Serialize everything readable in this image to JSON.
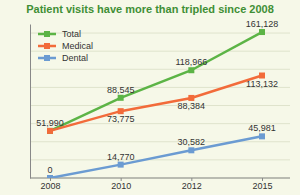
{
  "chart_data": {
    "type": "line",
    "title": "Patient visits have more than tripled since 2008",
    "categories": [
      "2008",
      "2010",
      "2012",
      "2015"
    ],
    "series": [
      {
        "name": "Total",
        "color": "#5cb446",
        "values": [
          51990,
          88545,
          118966,
          161128
        ],
        "value_labels": [
          "51,990",
          "88,545",
          "118,966",
          "161,128"
        ]
      },
      {
        "name": "Medical",
        "color": "#f26b3a",
        "values": [
          51990,
          73775,
          88384,
          113132
        ],
        "value_labels": [
          null,
          "73,775",
          "88,384",
          "113,132"
        ]
      },
      {
        "name": "Dental",
        "color": "#6b9bd2",
        "values": [
          0,
          14770,
          30582,
          45981
        ],
        "value_labels": [
          "0",
          "14,770",
          "30,582",
          "45,981"
        ]
      }
    ],
    "ylim": [
      0,
      170000
    ],
    "yticks": [
      0,
      20000,
      40000,
      60000,
      80000,
      100000,
      120000,
      140000,
      160000
    ],
    "grid": true,
    "tick_labels": "x",
    "legend": "top-left",
    "marker": "square",
    "data_labels": true
  }
}
